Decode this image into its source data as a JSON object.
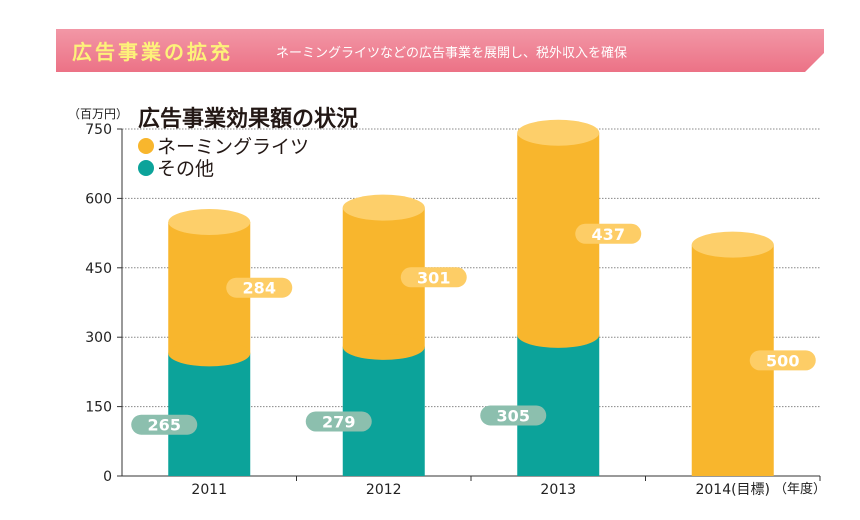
{
  "banner": {
    "title": "広告事業の拡充",
    "subtitle": "ネーミングライツなどの広告事業を展開し、税外収入を確保",
    "color": "#ef8a9a"
  },
  "chart_data": {
    "type": "bar",
    "stacked": true,
    "title": "広告事業効果額の状況",
    "ylabel": "（百万円）",
    "xlabel": "（年度）",
    "ylim": [
      0,
      750
    ],
    "yticks": [
      0,
      150,
      300,
      450,
      600,
      750
    ],
    "grid": true,
    "legend_position": "top-left",
    "categories": [
      "2011",
      "2012",
      "2013",
      "2014(目標)"
    ],
    "series": [
      {
        "name": "その他",
        "color": "#0ca39a",
        "label_color": "#8cbfae",
        "values": [
          265,
          279,
          305,
          0
        ],
        "labels": [
          "265",
          "279",
          "305",
          ""
        ]
      },
      {
        "name": "ネーミングライツ",
        "color": "#f8b62d",
        "label_color": "#fdcd66",
        "values": [
          284,
          301,
          437,
          500
        ],
        "labels": [
          "284",
          "301",
          "437",
          "500"
        ]
      }
    ]
  }
}
